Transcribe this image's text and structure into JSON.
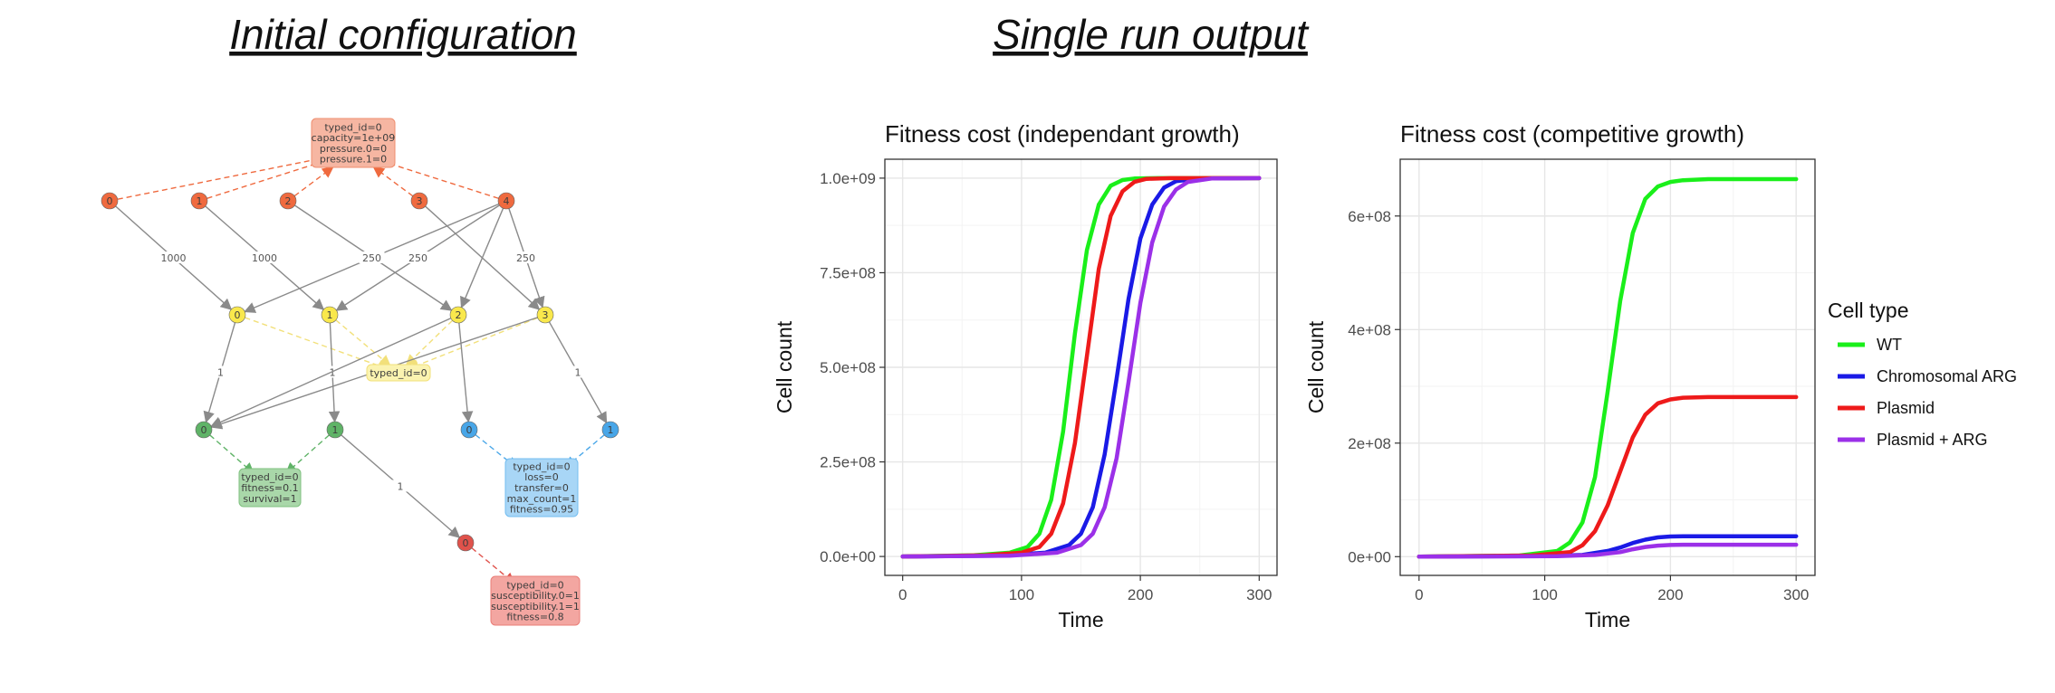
{
  "headings": {
    "left": "Initial configuration",
    "right": "Single run output"
  },
  "diagram": {
    "colors": {
      "orange": "#ef6a3f",
      "yellow": "#f9e84c",
      "green": "#5fb367",
      "blue": "#48a6e8",
      "red": "#e0524b",
      "edge": "#8a8a8a"
    },
    "nodes": [
      {
        "id": "o0",
        "label": "0",
        "color": "orange"
      },
      {
        "id": "o1",
        "label": "1",
        "color": "orange"
      },
      {
        "id": "o2",
        "label": "2",
        "color": "orange"
      },
      {
        "id": "o3",
        "label": "3",
        "color": "orange"
      },
      {
        "id": "o4",
        "label": "4",
        "color": "orange"
      },
      {
        "id": "y0",
        "label": "0",
        "color": "yellow"
      },
      {
        "id": "y1",
        "label": "1",
        "color": "yellow"
      },
      {
        "id": "y2",
        "label": "2",
        "color": "yellow"
      },
      {
        "id": "y3",
        "label": "3",
        "color": "yellow"
      },
      {
        "id": "g0",
        "label": "0",
        "color": "green"
      },
      {
        "id": "g1",
        "label": "1",
        "color": "green"
      },
      {
        "id": "b0",
        "label": "0",
        "color": "blue"
      },
      {
        "id": "b1",
        "label": "1",
        "color": "blue"
      },
      {
        "id": "r0",
        "label": "0",
        "color": "red"
      }
    ],
    "boxes": [
      {
        "id": "box_env",
        "lines": [
          "typed_id=0",
          "capacity=1e+09",
          "pressure.0=0",
          "pressure.1=0"
        ],
        "fill": "#f6b6a2",
        "stroke": "#ef8e6f"
      },
      {
        "id": "box_yel",
        "lines": [
          "typed_id=0"
        ],
        "fill": "#fbf3b0",
        "stroke": "#f2e07a"
      },
      {
        "id": "box_grn",
        "lines": [
          "typed_id=0",
          "fitness=0.1",
          "survival=1"
        ],
        "fill": "#a9d7a9",
        "stroke": "#7fc27f"
      },
      {
        "id": "box_blu",
        "lines": [
          "typed_id=0",
          "loss=0",
          "transfer=0",
          "max_count=1",
          "fitness=0.95"
        ],
        "fill": "#a8d6f6",
        "stroke": "#73bdf0"
      },
      {
        "id": "box_red",
        "lines": [
          "typed_id=0",
          "susceptibility.0=1",
          "susceptibility.1=1",
          "fitness=0.8"
        ],
        "fill": "#f3a6a1",
        "stroke": "#ea7d77"
      }
    ],
    "edge_labels": [
      {
        "edge": "o0-y0",
        "text": "1000"
      },
      {
        "edge": "o1-y1",
        "text": "1000"
      },
      {
        "edge": "o2-y2",
        "text": "250"
      },
      {
        "edge": "o4-y0",
        "text": "250"
      },
      {
        "edge": "o4-y1",
        "text": "250"
      },
      {
        "edge": "o4-y3",
        "text": "250"
      },
      {
        "edge": "y0-g0",
        "text": "1"
      },
      {
        "edge": "y1-g1",
        "text": "1"
      },
      {
        "edge": "y3-b1",
        "text": "1"
      },
      {
        "edge": "g1-r0",
        "text": "1"
      }
    ]
  },
  "legend": {
    "title": "Cell type",
    "items": [
      {
        "label": "WT",
        "color": "#1aef1a"
      },
      {
        "label": "Chromosomal ARG",
        "color": "#1a1ae6"
      },
      {
        "label": "Plasmid",
        "color": "#ee1a1a"
      },
      {
        "label": "Plasmid + ARG",
        "color": "#9b30e8"
      }
    ]
  },
  "chart_data": [
    {
      "type": "line",
      "title": "Fitness cost (independant growth)",
      "xlabel": "Time",
      "ylabel": "Cell count",
      "xlim": [
        -15,
        315
      ],
      "ylim": [
        -50000000,
        1050000000
      ],
      "x_ticks": [
        0,
        100,
        200,
        300
      ],
      "y_ticks": [
        0,
        250000000,
        500000000,
        750000000,
        1000000000
      ],
      "y_tick_labels": [
        "0.0e+00",
        "2.5e+08",
        "5.0e+08",
        "7.5e+08",
        "1.0e+09"
      ],
      "grid": true,
      "series": [
        {
          "name": "WT",
          "color": "#1aef1a",
          "x": [
            0,
            60,
            90,
            105,
            115,
            125,
            135,
            145,
            155,
            165,
            175,
            185,
            195,
            215,
            300
          ],
          "y": [
            0,
            3000000,
            10000000,
            25000000,
            60000000,
            150000000,
            330000000,
            590000000,
            810000000,
            930000000,
            980000000,
            995000000,
            999000000,
            1000000000,
            1000000000
          ]
        },
        {
          "name": "Chromosomal ARG",
          "color": "#1a1ae6",
          "x": [
            0,
            80,
            120,
            140,
            150,
            160,
            170,
            180,
            190,
            200,
            210,
            220,
            230,
            250,
            300
          ],
          "y": [
            0,
            2000000,
            10000000,
            30000000,
            60000000,
            130000000,
            270000000,
            470000000,
            680000000,
            840000000,
            930000000,
            975000000,
            992000000,
            999000000,
            1000000000
          ]
        },
        {
          "name": "Plasmid",
          "color": "#ee1a1a",
          "x": [
            0,
            70,
            100,
            115,
            125,
            135,
            145,
            155,
            165,
            175,
            185,
            195,
            205,
            225,
            300
          ],
          "y": [
            0,
            3000000,
            10000000,
            25000000,
            60000000,
            140000000,
            300000000,
            530000000,
            760000000,
            900000000,
            965000000,
            990000000,
            998000000,
            1000000000,
            1000000000
          ]
        },
        {
          "name": "Plasmid + ARG",
          "color": "#9b30e8",
          "x": [
            0,
            90,
            130,
            150,
            160,
            170,
            180,
            190,
            200,
            210,
            220,
            230,
            240,
            260,
            300
          ],
          "y": [
            0,
            2000000,
            10000000,
            30000000,
            60000000,
            130000000,
            260000000,
            460000000,
            670000000,
            830000000,
            925000000,
            970000000,
            990000000,
            999000000,
            1000000000
          ]
        }
      ]
    },
    {
      "type": "line",
      "title": "Fitness cost (competitive growth)",
      "xlabel": "Time",
      "ylabel": "Cell count",
      "xlim": [
        -15,
        315
      ],
      "ylim": [
        -33000000,
        700000000
      ],
      "x_ticks": [
        0,
        100,
        200,
        300
      ],
      "y_ticks": [
        0,
        200000000,
        400000000,
        600000000
      ],
      "y_tick_labels": [
        "0e+00",
        "2e+08",
        "4e+08",
        "6e+08"
      ],
      "grid": true,
      "series": [
        {
          "name": "WT",
          "color": "#1aef1a",
          "x": [
            0,
            80,
            110,
            120,
            130,
            140,
            150,
            160,
            170,
            180,
            190,
            200,
            210,
            230,
            300
          ],
          "y": [
            0,
            2000000,
            10000000,
            25000000,
            60000000,
            140000000,
            290000000,
            450000000,
            570000000,
            630000000,
            652000000,
            660000000,
            663000000,
            665000000,
            665000000
          ]
        },
        {
          "name": "Chromosomal ARG",
          "color": "#1a1ae6",
          "x": [
            0,
            100,
            130,
            150,
            160,
            170,
            180,
            190,
            200,
            210,
            300
          ],
          "y": [
            0,
            1000000,
            3000000,
            10000000,
            16000000,
            24000000,
            30000000,
            34000000,
            35500000,
            36000000,
            36000000
          ]
        },
        {
          "name": "Plasmid",
          "color": "#ee1a1a",
          "x": [
            0,
            90,
            120,
            130,
            140,
            150,
            160,
            170,
            180,
            190,
            200,
            210,
            230,
            300
          ],
          "y": [
            0,
            2000000,
            8000000,
            20000000,
            45000000,
            90000000,
            150000000,
            210000000,
            250000000,
            270000000,
            277000000,
            280000000,
            281000000,
            281000000
          ]
        },
        {
          "name": "Plasmid + ARG",
          "color": "#9b30e8",
          "x": [
            0,
            110,
            140,
            160,
            170,
            180,
            190,
            200,
            210,
            300
          ],
          "y": [
            0,
            1000000,
            3000000,
            8000000,
            13000000,
            17000000,
            19500000,
            20500000,
            21000000,
            21000000
          ]
        }
      ]
    }
  ]
}
